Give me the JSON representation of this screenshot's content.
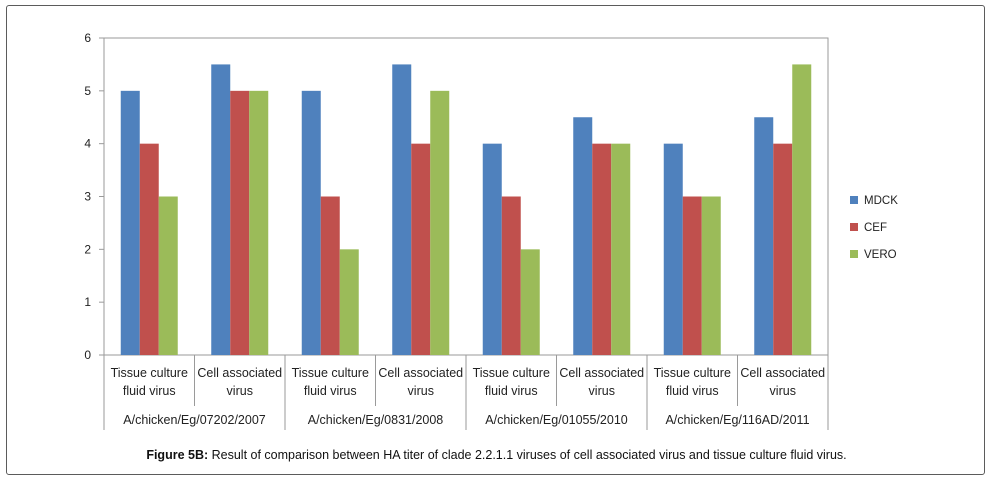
{
  "chart_data": {
    "type": "bar",
    "title": "",
    "xlabel": "",
    "ylabel": "",
    "ylim": [
      0,
      6
    ],
    "yticks": [
      0,
      1,
      2,
      3,
      4,
      5,
      6
    ],
    "grid": false,
    "legend_position": "right",
    "groups": [
      "A/chicken/Eg/07202/2007",
      "A/chicken/Eg/0831/2008",
      "A/chicken/Eg/01055/2010",
      "A/chicken/Eg/116AD/2011"
    ],
    "categories": [
      [
        "Tissue culture",
        "fluid virus"
      ],
      [
        "Cell associated",
        "virus"
      ],
      [
        "Tissue culture",
        "fluid virus"
      ],
      [
        "Cell associated",
        "virus"
      ],
      [
        "Tissue culture",
        "fluid virus"
      ],
      [
        "Cell associated",
        "virus"
      ],
      [
        "Tissue culture",
        "fluid virus"
      ],
      [
        "Cell associated",
        "virus"
      ]
    ],
    "series": [
      {
        "name": "MDCK",
        "color": "#4f81bd",
        "values": [
          5,
          5.5,
          5,
          5.5,
          4,
          4.5,
          4,
          4.5
        ]
      },
      {
        "name": "CEF",
        "color": "#c0504d",
        "values": [
          4,
          5,
          3,
          4,
          3,
          4,
          3,
          4
        ]
      },
      {
        "name": "VERO",
        "color": "#9bbb59",
        "values": [
          3,
          5,
          2,
          5,
          2,
          4,
          3,
          5.5
        ]
      }
    ]
  },
  "caption": {
    "label": "Figure 5B:",
    "text": " Result of comparison between HA titer of clade 2.2.1.1 viruses of cell associated virus and tissue culture fluid virus."
  }
}
